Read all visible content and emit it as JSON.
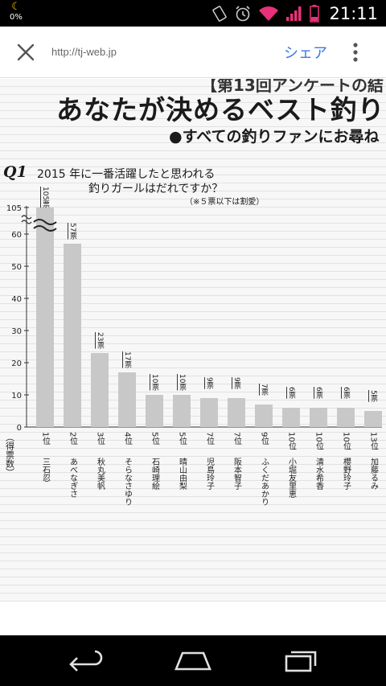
{
  "status_bar": {
    "battery_percent": "0%",
    "clock": "21:11",
    "icons": [
      "moon-icon",
      "rotate-icon",
      "alarm-icon",
      "wifi-icon",
      "signal-icon",
      "battery-icon"
    ]
  },
  "toolbar": {
    "url": "http://tj-web.jp",
    "share_label": "シェア",
    "icons": [
      "close-icon",
      "overflow-menu-icon"
    ]
  },
  "article": {
    "header_top": "【第13回アンケートの結",
    "title": "あなたが決めるベスト釣り",
    "subtitle": "●すべての釣りファンにお尋ね",
    "question_badge": "Q1",
    "question_line1": "2015 年に一番活躍したと思われる",
    "question_line2": "釣りガールはだれですか？",
    "note": "（※５票以下は割愛）"
  },
  "chart_data": {
    "type": "bar",
    "ylabel": "（得票数）",
    "ylim": [
      0,
      65
    ],
    "axis_break": true,
    "y_ticks": [
      "0",
      "10",
      "20",
      "30",
      "40",
      "50",
      "60",
      "105"
    ],
    "grid": false,
    "bar_color": "#c8c8c8",
    "categories": [
      {
        "rank": "1位",
        "name": "三石忍",
        "value": 105,
        "label": "105票"
      },
      {
        "rank": "2位",
        "name": "あべなぎさ",
        "value": 57,
        "label": "57票"
      },
      {
        "rank": "3位",
        "name": "秋丸美帆",
        "value": 23,
        "label": "23票"
      },
      {
        "rank": "4位",
        "name": "そらなさゆり",
        "value": 17,
        "label": "17票"
      },
      {
        "rank": "5位",
        "name": "石崎理絵",
        "value": 10,
        "label": "10票"
      },
      {
        "rank": "5位",
        "name": "晴山由梨",
        "value": 10,
        "label": "10票"
      },
      {
        "rank": "7位",
        "name": "児島玲子",
        "value": 9,
        "label": "9票"
      },
      {
        "rank": "7位",
        "name": "阪本智子",
        "value": 9,
        "label": "9票"
      },
      {
        "rank": "9位",
        "name": "ふくだあかり",
        "value": 7,
        "label": "7票"
      },
      {
        "rank": "10位",
        "name": "小堀友里恵",
        "value": 6,
        "label": "6票"
      },
      {
        "rank": "10位",
        "name": "清水希香",
        "value": 6,
        "label": "6票"
      },
      {
        "rank": "10位",
        "name": "櫻野玲子",
        "value": 6,
        "label": "6票"
      },
      {
        "rank": "13位",
        "name": "加藤るみ",
        "value": 5,
        "label": "5票"
      }
    ]
  }
}
